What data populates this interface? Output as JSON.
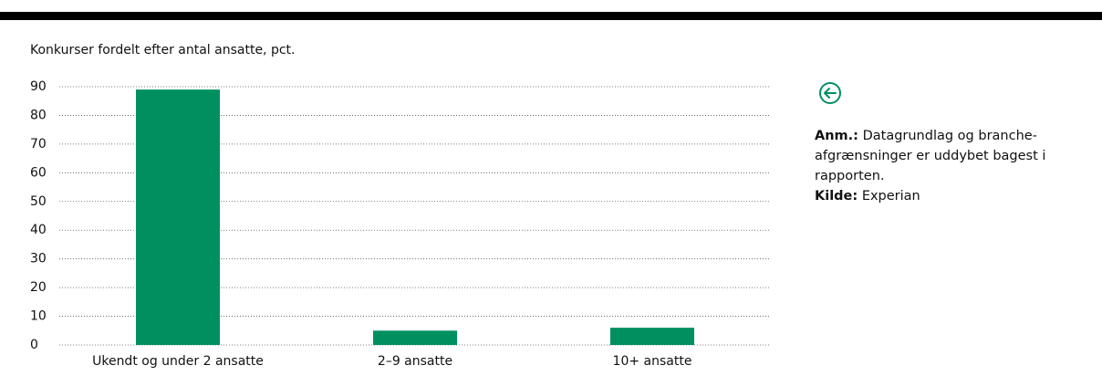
{
  "chart_data": {
    "type": "bar",
    "subtitle": "Konkurser fordelt efter antal ansatte, pct.",
    "categories": [
      "Ukendt og under 2 ansatte",
      "2–9 ansatte",
      "10+ ansatte"
    ],
    "values": [
      89,
      5,
      6
    ],
    "color": "#00905f",
    "ylim": [
      0,
      90
    ],
    "yticks": [
      0,
      10,
      20,
      30,
      40,
      50,
      60,
      70,
      80,
      90
    ],
    "grid": true
  },
  "notes": {
    "note_label": "Anm.:",
    "note_text": "Datagrundlag og branche-afgrænsninger er uddybet bagest i rapporten.",
    "source_label": "Kilde:",
    "source_text": "Experian"
  }
}
